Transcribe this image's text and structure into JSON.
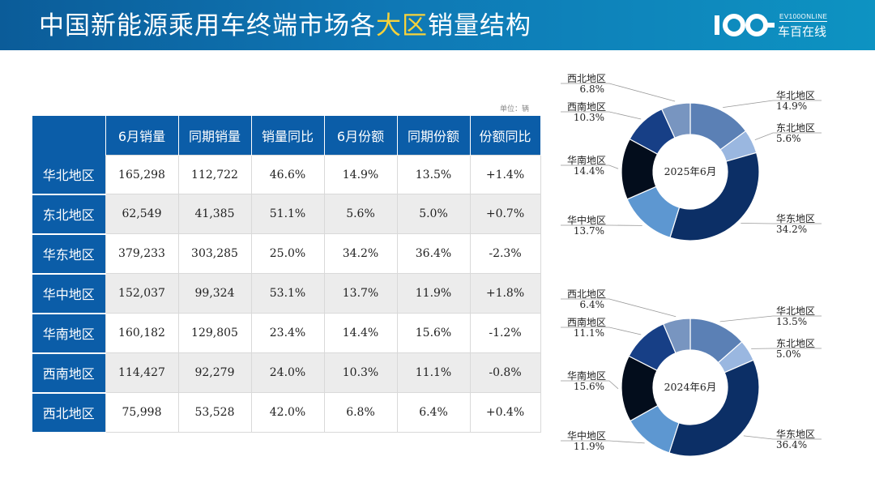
{
  "header": {
    "title_part1": "中国新能源乘用车终端市场各",
    "title_highlight": "大区",
    "title_part2": "销量结构",
    "logo_en": "EV100ONLINE",
    "logo_cn": "车百在线"
  },
  "unit_note": "单位：辆",
  "table": {
    "columns": [
      "6月销量",
      "同期销量",
      "销量同比",
      "6月份额",
      "同期份额",
      "份额同比"
    ],
    "rows": [
      {
        "region": "华北地区",
        "cells": [
          "165,298",
          "112,722",
          "46.6%",
          "14.9%",
          "13.5%",
          "+1.4%"
        ]
      },
      {
        "region": "东北地区",
        "cells": [
          "62,549",
          "41,385",
          "51.1%",
          "5.6%",
          "5.0%",
          "+0.7%"
        ]
      },
      {
        "region": "华东地区",
        "cells": [
          "379,233",
          "303,285",
          "25.0%",
          "34.2%",
          "36.4%",
          "-2.3%"
        ]
      },
      {
        "region": "华中地区",
        "cells": [
          "152,037",
          "99,324",
          "53.1%",
          "13.7%",
          "11.9%",
          "+1.8%"
        ]
      },
      {
        "region": "华南地区",
        "cells": [
          "160,182",
          "129,805",
          "23.4%",
          "14.4%",
          "15.6%",
          "-1.2%"
        ]
      },
      {
        "region": "西南地区",
        "cells": [
          "114,427",
          "92,279",
          "24.0%",
          "10.3%",
          "11.1%",
          "-0.8%"
        ]
      },
      {
        "region": "西北地区",
        "cells": [
          "75,998",
          "53,528",
          "42.0%",
          "6.8%",
          "6.4%",
          "+0.4%"
        ]
      }
    ]
  },
  "chart_data": [
    {
      "type": "pie",
      "title": "2025年6月",
      "categories": [
        "华北地区",
        "东北地区",
        "华东地区",
        "华中地区",
        "华南地区",
        "西南地区",
        "西北地区"
      ],
      "values": [
        14.9,
        5.6,
        34.2,
        13.7,
        14.4,
        10.3,
        6.8
      ],
      "labels": [
        "14.9%",
        "5.6%",
        "34.2%",
        "13.7%",
        "14.4%",
        "10.3%",
        "6.8%"
      ],
      "colors": [
        "#5b80b5",
        "#9ab7e0",
        "#0c2f66",
        "#5d97d1",
        "#030d1c",
        "#173f86",
        "#7895c0"
      ]
    },
    {
      "type": "pie",
      "title": "2024年6月",
      "categories": [
        "华北地区",
        "东北地区",
        "华东地区",
        "华中地区",
        "华南地区",
        "西南地区",
        "西北地区"
      ],
      "values": [
        13.5,
        5.0,
        36.4,
        11.9,
        15.6,
        11.1,
        6.4
      ],
      "labels": [
        "13.5%",
        "5.0%",
        "36.4%",
        "11.9%",
        "15.6%",
        "11.1%",
        "6.4%"
      ],
      "colors": [
        "#5b80b5",
        "#9ab7e0",
        "#0c2f66",
        "#5d97d1",
        "#030d1c",
        "#173f86",
        "#7895c0"
      ]
    }
  ]
}
